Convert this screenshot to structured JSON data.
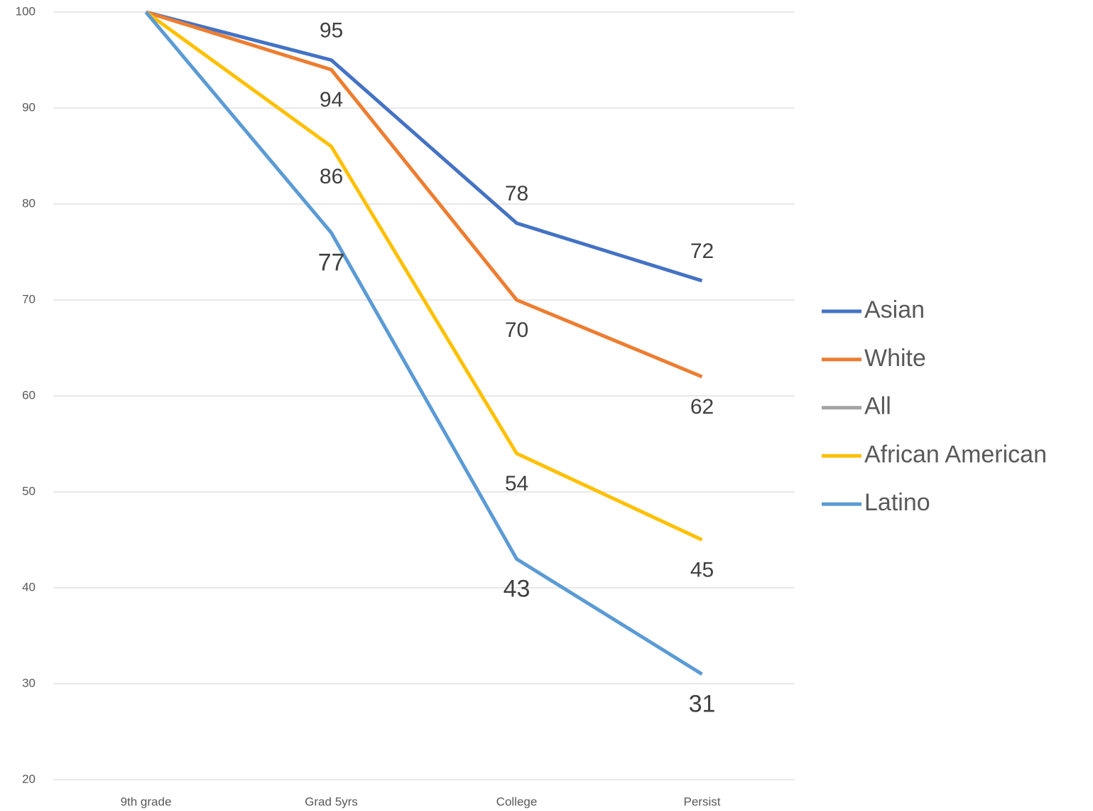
{
  "chart_data": {
    "type": "line",
    "categories": [
      "9th grade",
      "Grad 5yrs",
      "College",
      "Persist"
    ],
    "series": [
      {
        "name": "Asian",
        "color": "#4472c4",
        "values": [
          100,
          95,
          78,
          72
        ]
      },
      {
        "name": "White",
        "color": "#ed7d31",
        "values": [
          100,
          94,
          70,
          62
        ]
      },
      {
        "name": "All",
        "color": "#a5a5a5",
        "values": [
          null,
          null,
          null,
          null
        ]
      },
      {
        "name": "African American",
        "color": "#ffc000",
        "values": [
          100,
          86,
          54,
          45
        ]
      },
      {
        "name": "Latino",
        "color": "#5b9bd5",
        "values": [
          100,
          77,
          43,
          31
        ]
      }
    ],
    "ylim": [
      20,
      100
    ],
    "yticks": [
      20,
      30,
      40,
      50,
      60,
      70,
      80,
      90,
      100
    ],
    "grid": true,
    "legend": "right"
  }
}
